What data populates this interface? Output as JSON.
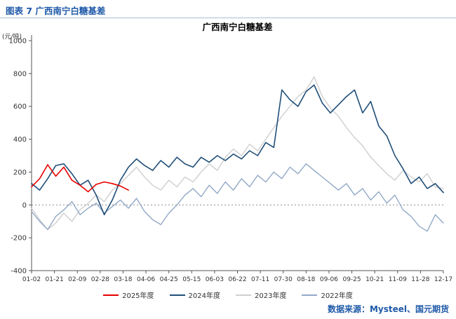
{
  "page": {
    "header_title": "图表 7 广西南宁白糖基差",
    "source_note": "数据来源：Mysteel、国元期货",
    "accent_color": "#1f5aa8"
  },
  "chart_data": {
    "type": "line",
    "title": "广西南宁白糖基差",
    "ylabel": "(元/吨)",
    "ylim": [
      -400,
      1000
    ],
    "yticks": [
      1000,
      800,
      600,
      400,
      200,
      0,
      -200,
      -400
    ],
    "grid": "zero-line-dotted",
    "legend_position": "bottom",
    "x_count": 52,
    "xticks": [
      "01-02",
      "01-21",
      "02-09",
      "02-28",
      "03-18",
      "04-06",
      "04-25",
      "05-15",
      "06-03",
      "06-22",
      "07-11",
      "07-30",
      "08-18",
      "09-06",
      "09-25",
      "10-21",
      "11-09",
      "11-28",
      "12-17"
    ],
    "draw_order": [
      2,
      3,
      1,
      0
    ],
    "series": [
      {
        "name": "2025年度",
        "color": "#e60000",
        "width": 1.6,
        "x_offset": 0,
        "values": [
          110,
          160,
          245,
          175,
          230,
          150,
          120,
          80,
          125,
          140,
          130,
          115,
          90
        ]
      },
      {
        "name": "2024年度",
        "color": "#1f4e79",
        "width": 1.6,
        "x_offset": 0,
        "values": [
          130,
          90,
          160,
          240,
          250,
          190,
          120,
          150,
          60,
          -60,
          30,
          150,
          230,
          280,
          240,
          210,
          270,
          230,
          290,
          250,
          230,
          290,
          260,
          300,
          270,
          310,
          280,
          330,
          300,
          380,
          350,
          700,
          640,
          600,
          690,
          730,
          620,
          560,
          610,
          660,
          700,
          560,
          630,
          480,
          420,
          300,
          220,
          130,
          170,
          100,
          130,
          75
        ]
      },
      {
        "name": "2023年度",
        "color": "#cfcfcf",
        "width": 1.4,
        "x_offset": 0,
        "values": [
          -20,
          -90,
          -150,
          -110,
          -50,
          -100,
          -30,
          10,
          60,
          20,
          90,
          130,
          180,
          230,
          170,
          120,
          90,
          150,
          110,
          170,
          140,
          200,
          250,
          210,
          290,
          340,
          300,
          370,
          330,
          400,
          470,
          540,
          600,
          660,
          700,
          780,
          660,
          590,
          540,
          470,
          410,
          360,
          290,
          240,
          190,
          150,
          210,
          170,
          140,
          190,
          110,
          100
        ]
      },
      {
        "name": "2022年度",
        "color": "#92a9c7",
        "width": 1.4,
        "x_offset": 0,
        "values": [
          -40,
          -100,
          -150,
          -70,
          -30,
          20,
          -60,
          -20,
          10,
          -50,
          -10,
          30,
          -20,
          40,
          -40,
          -90,
          -120,
          -50,
          0,
          60,
          100,
          50,
          120,
          70,
          140,
          90,
          160,
          110,
          180,
          140,
          200,
          160,
          230,
          190,
          250,
          210,
          170,
          130,
          90,
          130,
          60,
          100,
          30,
          80,
          10,
          60,
          -30,
          -70,
          -130,
          -160,
          -60,
          -110
        ]
      }
    ]
  }
}
